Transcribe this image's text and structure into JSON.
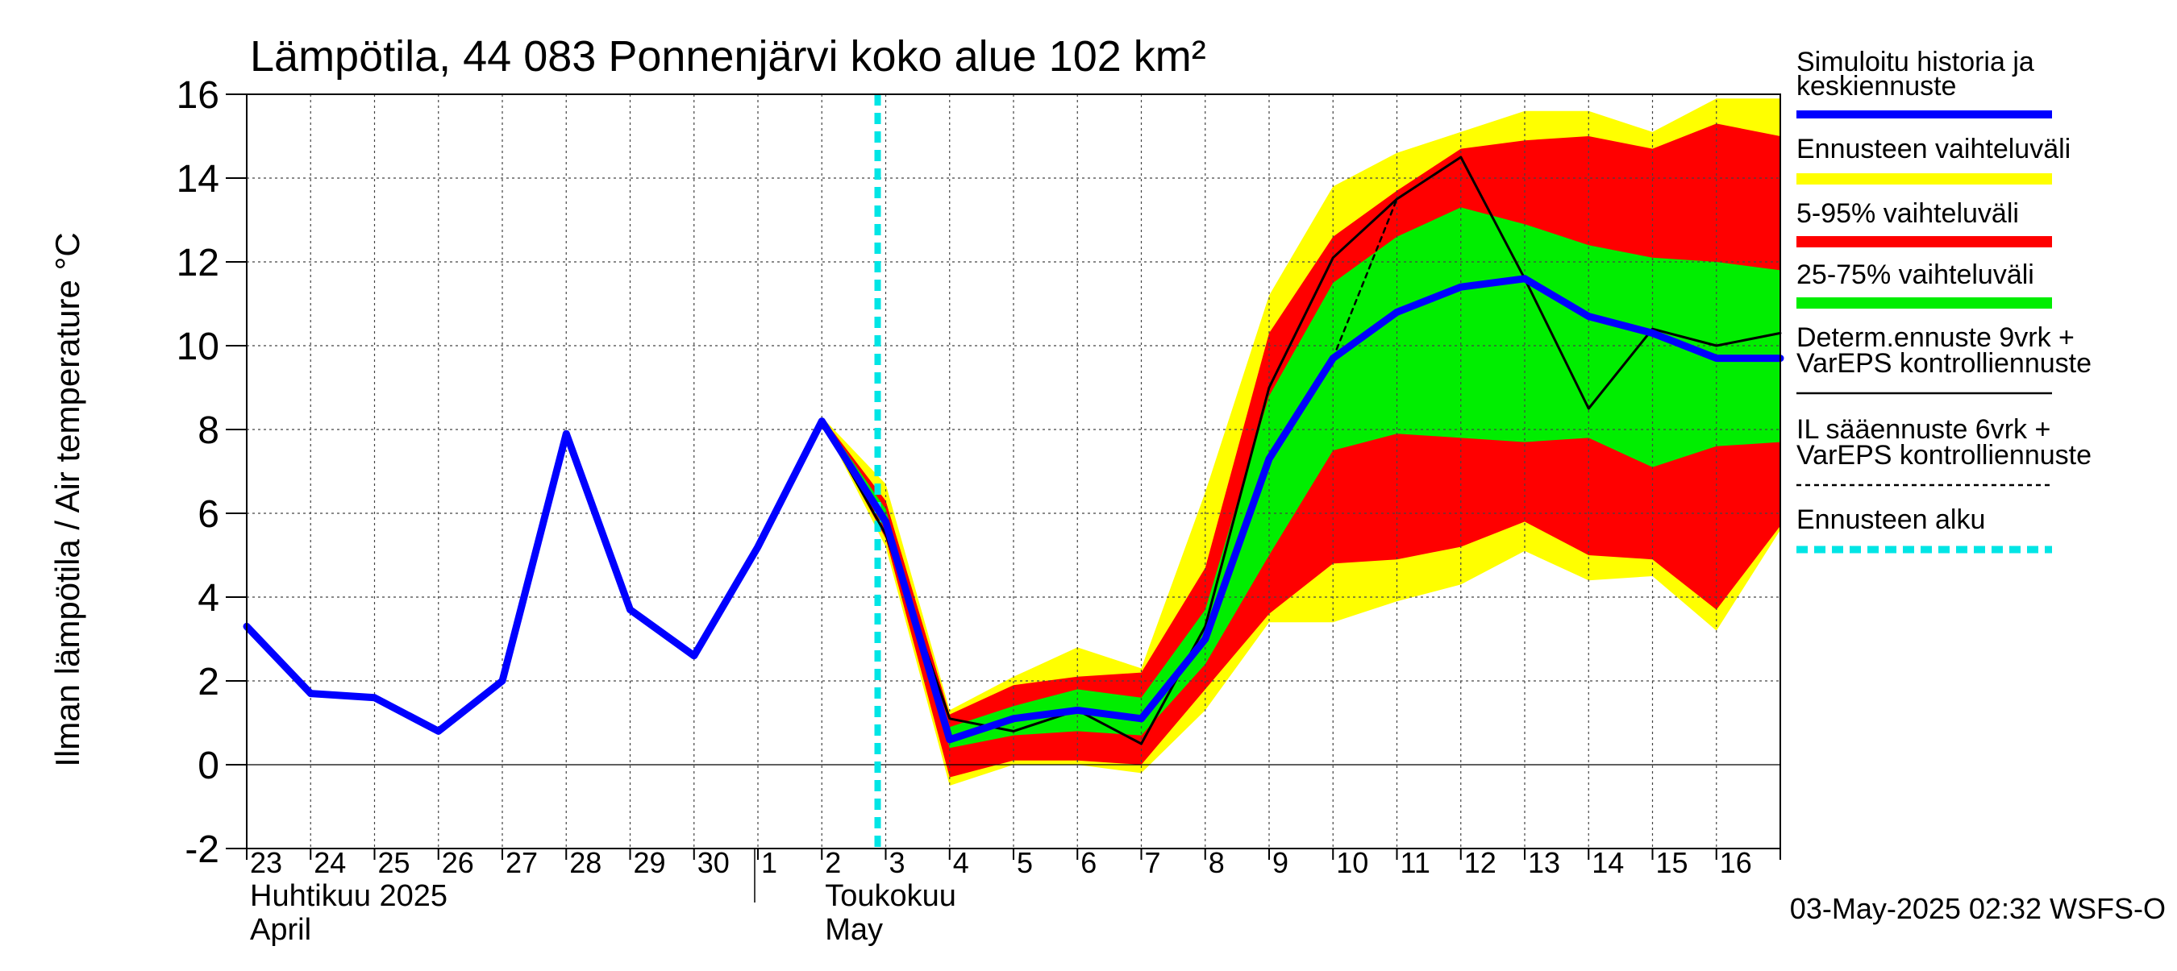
{
  "chart_data": {
    "type": "line",
    "title": "Lämpötila, 44 083 Ponnenjärvi koko alue 102 km²",
    "ylabel": "Ilman lämpötila / Air temperature   °C",
    "ylim": [
      -2,
      16
    ],
    "yticks": [
      -2,
      0,
      2,
      4,
      6,
      8,
      10,
      12,
      14,
      16
    ],
    "x_range": [
      "2025-04-23",
      "2025-05-17"
    ],
    "x_day_labels": [
      "23",
      "24",
      "25",
      "26",
      "27",
      "28",
      "29",
      "30",
      "1",
      "2",
      "3",
      "4",
      "5",
      "6",
      "7",
      "8",
      "9",
      "10",
      "11",
      "12",
      "13",
      "14",
      "15",
      "16"
    ],
    "month_labels": [
      {
        "fi": "Huhtikuu  2025",
        "en": "April",
        "start": "2025-04-23"
      },
      {
        "fi": "Toukokuu",
        "en": "May",
        "start": "2025-05-02"
      }
    ],
    "forecast_start": "2025-05-03",
    "timestamp": "03-May-2025 02:32 WSFS-O",
    "grid": true,
    "legend_position": "right",
    "colors": {
      "history": "#0000ff",
      "range": "#ffff00",
      "p5_95": "#ff0000",
      "p25_75": "#00ee00",
      "deterministic": "#000000",
      "il_forecast": "#000000",
      "forecast_start": "#00e5e5"
    },
    "legend": [
      {
        "label": "Simuloitu historia ja\nkeskiennuste",
        "style": "blue-thick"
      },
      {
        "label": "Ennusteen vaihteluväli",
        "style": "yellow-thick"
      },
      {
        "label": "5-95% vaihteluväli",
        "style": "red-thick"
      },
      {
        "label": "25-75% vaihteluväli",
        "style": "green-thick"
      },
      {
        "label": "Determ.ennuste 9vrk +\nVarEPS kontrolliennuste",
        "style": "black-thin"
      },
      {
        "label": "IL sääennuste 6vrk  +\n  VarEPS kontrolliennuste",
        "style": "black-dashed"
      },
      {
        "label": "Ennusteen alku",
        "style": "cyan-dashed"
      }
    ],
    "series": [
      {
        "name": "Simuloitu historia ja keskiennuste",
        "x": [
          "2025-04-23",
          "2025-04-24",
          "2025-04-25",
          "2025-04-26",
          "2025-04-27",
          "2025-04-28",
          "2025-04-29",
          "2025-04-30",
          "2025-05-01",
          "2025-05-02",
          "2025-05-03",
          "2025-05-04",
          "2025-05-05",
          "2025-05-06",
          "2025-05-07",
          "2025-05-08",
          "2025-05-09",
          "2025-05-10",
          "2025-05-11",
          "2025-05-12",
          "2025-05-13",
          "2025-05-14",
          "2025-05-15",
          "2025-05-16",
          "2025-05-17"
        ],
        "y": [
          3.3,
          1.7,
          1.6,
          0.8,
          2.0,
          7.9,
          3.7,
          2.6,
          5.2,
          8.2,
          5.8,
          0.6,
          1.1,
          1.3,
          1.1,
          3.0,
          7.3,
          9.7,
          10.8,
          11.4,
          11.6,
          10.7,
          10.3,
          9.7,
          9.7
        ]
      },
      {
        "name": "Determ.ennuste 9vrk + VarEPS kontrolliennuste",
        "x": [
          "2025-05-01",
          "2025-05-02",
          "2025-05-03",
          "2025-05-04",
          "2025-05-05",
          "2025-05-06",
          "2025-05-07",
          "2025-05-08",
          "2025-05-09",
          "2025-05-10",
          "2025-05-11",
          "2025-05-12",
          "2025-05-13",
          "2025-05-14",
          "2025-05-15",
          "2025-05-16",
          "2025-05-17"
        ],
        "y": [
          5.2,
          8.2,
          5.5,
          1.1,
          0.8,
          1.3,
          0.5,
          3.3,
          9.0,
          12.1,
          13.5,
          14.5,
          11.6,
          8.5,
          10.4,
          10.0,
          10.3
        ]
      },
      {
        "name": "IL sääennuste 6vrk + VarEPS kontrolliennuste",
        "x": [
          "2025-05-10",
          "2025-05-11"
        ],
        "y": [
          9.7,
          13.5
        ]
      }
    ],
    "bands": [
      {
        "name": "Ennusteen vaihteluväli",
        "x": [
          "2025-05-02",
          "2025-05-03",
          "2025-05-04",
          "2025-05-05",
          "2025-05-06",
          "2025-05-07",
          "2025-05-08",
          "2025-05-09",
          "2025-05-10",
          "2025-05-11",
          "2025-05-12",
          "2025-05-13",
          "2025-05-14",
          "2025-05-15",
          "2025-05-16",
          "2025-05-17"
        ],
        "low": [
          8.2,
          5.2,
          -0.5,
          0.0,
          0.0,
          -0.2,
          1.3,
          3.4,
          3.4,
          3.9,
          4.3,
          5.1,
          4.4,
          4.5,
          3.2,
          5.6
        ],
        "high": [
          8.3,
          6.7,
          1.3,
          2.1,
          2.8,
          2.3,
          6.5,
          11.2,
          13.8,
          14.6,
          15.1,
          15.6,
          15.6,
          15.1,
          15.9,
          15.9
        ]
      },
      {
        "name": "5-95% vaihteluväli",
        "x": [
          "2025-05-02",
          "2025-05-03",
          "2025-05-04",
          "2025-05-05",
          "2025-05-06",
          "2025-05-07",
          "2025-05-08",
          "2025-05-09",
          "2025-05-10",
          "2025-05-11",
          "2025-05-12",
          "2025-05-13",
          "2025-05-14",
          "2025-05-15",
          "2025-05-16",
          "2025-05-17"
        ],
        "low": [
          8.2,
          5.4,
          -0.3,
          0.1,
          0.1,
          0.0,
          1.8,
          3.6,
          4.8,
          4.9,
          5.2,
          5.8,
          5.0,
          4.9,
          3.7,
          5.7
        ],
        "high": [
          8.3,
          6.3,
          1.2,
          1.9,
          2.1,
          2.2,
          4.7,
          10.3,
          12.6,
          13.7,
          14.7,
          14.9,
          15.0,
          14.7,
          15.3,
          15.0
        ]
      },
      {
        "name": "25-75% vaihteluväli",
        "x": [
          "2025-05-02",
          "2025-05-03",
          "2025-05-04",
          "2025-05-05",
          "2025-05-06",
          "2025-05-07",
          "2025-05-08",
          "2025-05-09",
          "2025-05-10",
          "2025-05-11",
          "2025-05-12",
          "2025-05-13",
          "2025-05-14",
          "2025-05-15",
          "2025-05-16",
          "2025-05-17"
        ],
        "low": [
          8.2,
          5.6,
          0.4,
          0.7,
          0.8,
          0.7,
          2.4,
          5.0,
          7.5,
          7.9,
          7.8,
          7.7,
          7.8,
          7.1,
          7.6,
          7.7
        ],
        "high": [
          8.3,
          6.1,
          0.9,
          1.4,
          1.8,
          1.6,
          3.7,
          8.8,
          11.5,
          12.6,
          13.3,
          12.9,
          12.4,
          12.1,
          12.0,
          11.8
        ]
      }
    ]
  }
}
